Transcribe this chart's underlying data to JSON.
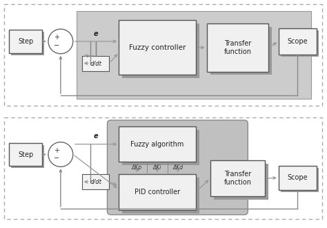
{
  "diagram1": {
    "step_label": "Step",
    "ddt_label": "d/dt",
    "fuzzy_label": "Fuzzy controller",
    "transfer_label": "Transfer\nfunction",
    "scope_label": "Scope",
    "e_label": "e"
  },
  "diagram2": {
    "step_label": "Step",
    "ddt_label": "d/dt",
    "fuzzy_label": "Fuzzy algorithm",
    "pid_label": "PID controller",
    "transfer_label": "Transfer\nfunction",
    "scope_label": "Scope",
    "e_label": "e",
    "dkp_label": "ΔKp",
    "dki_label": "ΔKi",
    "dkd_label": "ΔKd"
  },
  "colors": {
    "outer_dash": "#aaaaaa",
    "inner_bg": "#c8c8c8",
    "box_face": "#f0f0f0",
    "shadow_face": "#999999",
    "box_edge": "#555555",
    "arrow": "#888888",
    "text": "#222222",
    "white": "#ffffff",
    "rounded_bg": "#bbbbbb"
  }
}
